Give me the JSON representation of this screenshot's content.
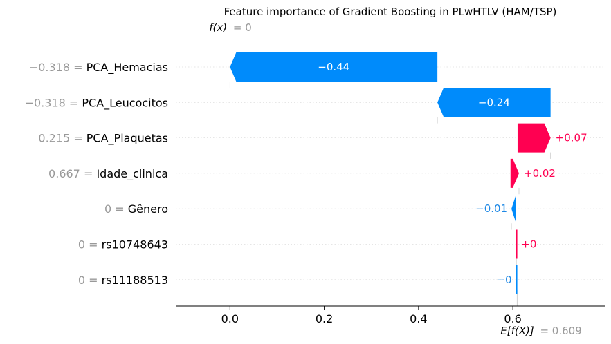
{
  "chart_data": {
    "type": "bar",
    "subtype": "waterfall",
    "title": "Feature importance of Gradient Boosting in PLwHTLV (HAM/TSP)",
    "fx": {
      "label": "f(x)",
      "value_text": "= 0",
      "value": 0
    },
    "expected": {
      "label": "E[f(X)]",
      "value_text": "= 0.609",
      "value": 0.609
    },
    "xlim": [
      -0.115,
      0.795
    ],
    "xticks": [
      {
        "value": 0.0,
        "label": "0.0"
      },
      {
        "value": 0.2,
        "label": "0.2"
      },
      {
        "value": 0.4,
        "label": "0.4"
      },
      {
        "value": 0.6,
        "label": "0.6"
      }
    ],
    "features": [
      {
        "value": "−0.318 =",
        "name": "PCA_Hemacias",
        "shap": -0.44,
        "label": "−0.44",
        "start": 0.44,
        "end": 0.0
      },
      {
        "value": "−0.318 =",
        "name": "PCA_Leucocitos",
        "shap": -0.24,
        "label": "−0.24",
        "start": 0.68,
        "end": 0.44
      },
      {
        "value": "0.215 =",
        "name": "PCA_Plaquetas",
        "shap": 0.07,
        "label": "+0.07",
        "start": 0.61,
        "end": 0.68
      },
      {
        "value": "0.667 =",
        "name": "Idade_clinica",
        "shap": 0.02,
        "label": "+0.02",
        "start": 0.595,
        "end": 0.613
      },
      {
        "value": "0 =",
        "name": "Gênero",
        "shap": -0.01,
        "label": "−0.01",
        "start": 0.607,
        "end": 0.597
      },
      {
        "value": "0 =",
        "name": "rs10748643",
        "shap": 0.0,
        "label": "+0",
        "start": 0.6065,
        "end": 0.6075
      },
      {
        "value": "0 =",
        "name": "rs11188513",
        "shap": -0.0,
        "label": "−0",
        "start": 0.6075,
        "end": 0.6065
      }
    ],
    "colors": {
      "positive": "#ff0051",
      "negative": "#008bfb",
      "positive_text": "#ff0051",
      "negative_text": "#1e88e5"
    }
  }
}
